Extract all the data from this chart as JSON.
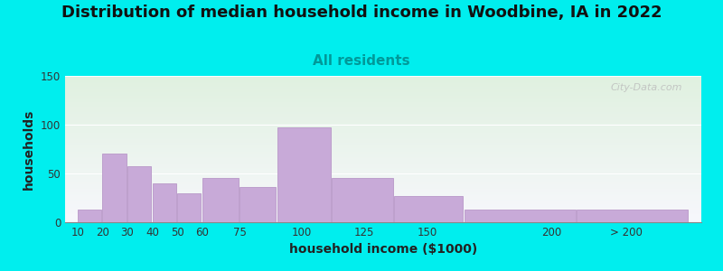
{
  "title": "Distribution of median household income in Woodbine, IA in 2022",
  "subtitle": "All residents",
  "xlabel": "household income ($1000)",
  "ylabel": "households",
  "title_fontsize": 13,
  "subtitle_fontsize": 11,
  "subtitle_color": "#009999",
  "axis_label_fontsize": 10,
  "background_color": "#00EEEE",
  "bar_color": "#c8aad8",
  "bar_edge_color": "#b898c8",
  "values": [
    13,
    70,
    57,
    40,
    30,
    45,
    36,
    97,
    45,
    27,
    13,
    13
  ],
  "ylim": [
    0,
    150
  ],
  "yticks": [
    0,
    50,
    100,
    150
  ],
  "watermark": "City-Data.com",
  "bar_lefts": [
    10,
    20,
    30,
    40,
    50,
    60,
    75,
    90,
    112,
    137,
    165,
    210
  ],
  "bar_rights": [
    20,
    30,
    40,
    50,
    60,
    75,
    90,
    112,
    137,
    165,
    210,
    255
  ],
  "xtick_positions": [
    10,
    20,
    30,
    40,
    50,
    60,
    75,
    100,
    125,
    150,
    200
  ],
  "xtick_labels": [
    "10",
    "20",
    "30",
    "40",
    "50",
    "60",
    "75",
    "100",
    "125",
    "150",
    "200"
  ],
  "xtick_gt200_pos": 230,
  "xlim": [
    5,
    260
  ]
}
